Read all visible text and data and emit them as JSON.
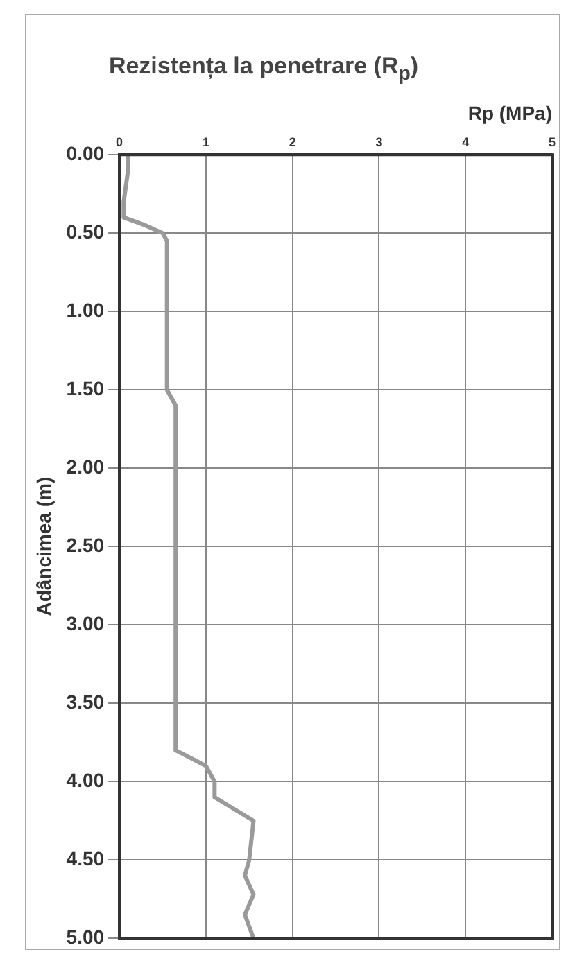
{
  "chart_data": {
    "type": "line",
    "title": "Rezistența la penetrare (R$_{p}$)",
    "xlabel": "Rp (MPa)",
    "ylabel": "Adâncimea (m)",
    "xlim": [
      0,
      5
    ],
    "xticks": [
      0,
      1,
      2,
      3,
      4,
      5
    ],
    "ylim": [
      5,
      0
    ],
    "yticks": [
      {
        "value": 0,
        "label": "0.00"
      },
      {
        "value": 0.5,
        "label": "0.50"
      },
      {
        "value": 1,
        "label": "1.00"
      },
      {
        "value": 1.5,
        "label": "1.50"
      },
      {
        "value": 2,
        "label": "2.00"
      },
      {
        "value": 2.5,
        "label": "2.50"
      },
      {
        "value": 3,
        "label": "3.00"
      },
      {
        "value": 3.5,
        "label": "3.50"
      },
      {
        "value": 4,
        "label": "4.00"
      },
      {
        "value": 4.5,
        "label": "4.50"
      },
      {
        "value": 5,
        "label": "5.00"
      }
    ],
    "grid": true,
    "legend": false,
    "marker": "none",
    "line_style": "solid",
    "series": [
      {
        "color": "#9a9a9a",
        "x": [
          0.1,
          0.1,
          0.05,
          0.05,
          0.3,
          0.5,
          0.55,
          0.55,
          0.65,
          0.65,
          1.0,
          1.1,
          1.1,
          1.55,
          1.5,
          1.45,
          1.55,
          1.45,
          1.55
        ],
        "values": [
          0.0,
          0.1,
          0.3,
          0.4,
          0.45,
          0.5,
          0.55,
          1.5,
          1.6,
          3.8,
          3.9,
          4.0,
          4.1,
          4.25,
          4.5,
          4.6,
          4.72,
          4.85,
          5.0
        ]
      }
    ]
  }
}
